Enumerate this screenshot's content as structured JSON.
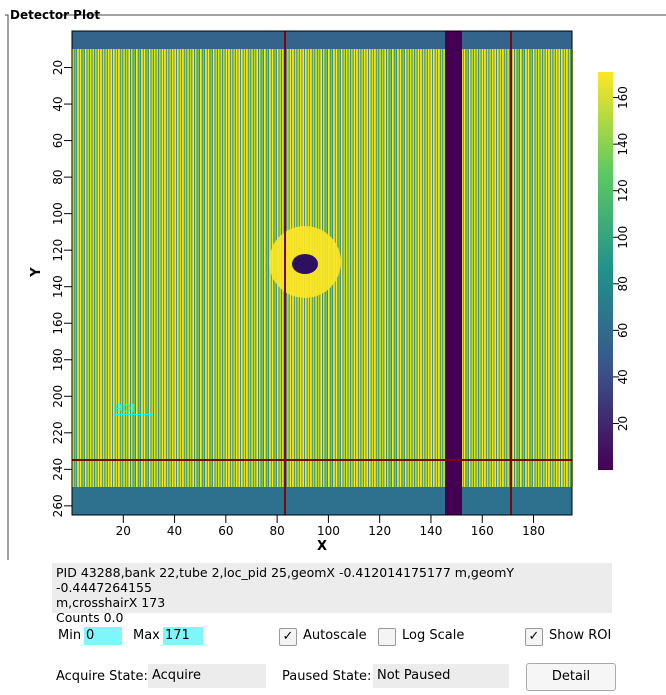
{
  "group_title": "Detector Plot",
  "plot": {
    "xlabel": "X",
    "ylabel": "Y",
    "xlim": [
      0,
      195
    ],
    "xticks": [
      20,
      40,
      60,
      80,
      100,
      120,
      140,
      160,
      180
    ],
    "ylim": [
      0,
      265
    ],
    "yticks": [
      20,
      40,
      60,
      80,
      100,
      120,
      140,
      160,
      180,
      200,
      220,
      240,
      260
    ],
    "colorbar_lim": [
      0,
      171
    ],
    "colorbar_ticks": [
      20,
      40,
      60,
      80,
      100,
      120,
      140,
      160
    ],
    "roi_label": "ROI"
  },
  "status": {
    "lines": [
      "PID 43288,bank 22,tube 2,loc_pid 25,geomX -0.412014175177 m,geomY -0.4447264155",
      "m,crosshairX 173",
      "Counts 0.0"
    ]
  },
  "controls": {
    "min_label": "Min",
    "min_value": 0,
    "max_label": "Max",
    "max_value": 171,
    "autoscale": {
      "label": "Autoscale",
      "checked": true
    },
    "log_scale": {
      "label": "Log Scale",
      "checked": false
    },
    "show_roi": {
      "label": "Show ROI",
      "checked": true
    },
    "acquire_label": "Acquire State:",
    "acquire_value": "Acquire",
    "paused_label": "Paused State:",
    "paused_value": "Not Paused",
    "detail_button": "Detail"
  }
}
